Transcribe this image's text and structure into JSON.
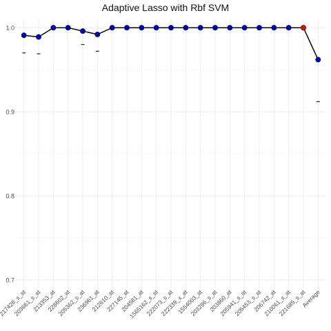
{
  "chart_data": {
    "type": "line",
    "title": "Adaptive Lasso with Rbf SVM",
    "xlabel": "",
    "ylabel": "",
    "ylim": [
      0.69,
      1.01
    ],
    "yticks": [
      "0.7",
      "0.8",
      "0.9",
      "1.0"
    ],
    "grid": true,
    "categories": [
      "217428_s_at",
      "203661_s_at",
      "213353_at",
      "228602_at",
      "205362_s_at",
      "236961_at",
      "212610_at",
      "227145_at",
      "204581_at",
      "1565162_s_at",
      "222073_s_at",
      "222339_x_at",
      "1554003_at",
      "203296_s_at",
      "203860_at",
      "205941_s_at",
      "205453_s_at",
      "206742_at",
      "210061_s_at",
      "221685_s_at",
      "Average"
    ],
    "series": [
      {
        "values": [
          0.991,
          0.989,
          1.0,
          1.0,
          0.996,
          0.992,
          1.0,
          1.0,
          1.0,
          1.0,
          1.0,
          1.0,
          1.0,
          1.0,
          1.0,
          1.0,
          1.0,
          1.0,
          1.0,
          1.0,
          0.962
        ],
        "lower": [
          0.97,
          0.969,
          null,
          null,
          0.98,
          0.972,
          null,
          null,
          null,
          null,
          null,
          null,
          null,
          null,
          null,
          null,
          null,
          null,
          null,
          null,
          0.912
        ]
      }
    ],
    "highlight_index": 19,
    "colors": {
      "line": "#000000",
      "point": "#0000cc",
      "highlight": "#e01010",
      "grid": "#ebebeb",
      "tick_text": "#4d4d4d"
    }
  }
}
